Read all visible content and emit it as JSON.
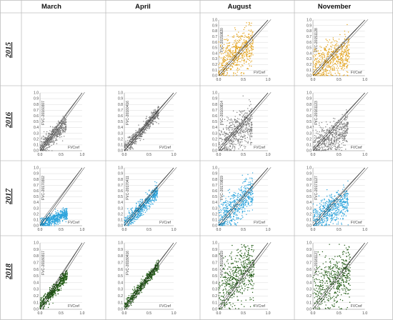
{
  "columns": [
    "March",
    "April",
    "August",
    "November"
  ],
  "rows": [
    "2015",
    "2016",
    "2017",
    "2018"
  ],
  "colors": {
    "2015": "#e3a21a",
    "2016": "#7f7f7f",
    "2017": "#2aa3dc",
    "2018": "#1f5a12"
  },
  "chart_data": [
    {
      "type": "scatter",
      "row": "2016",
      "column": "March",
      "ylabel": "FVC-20160307",
      "xlabel": "FVCref",
      "xlim": [
        0,
        1.0
      ],
      "ylim": [
        0,
        1.0
      ],
      "yticks": [
        0,
        0.1,
        0.2,
        0.3,
        0.4,
        0.5,
        0.6,
        0.7,
        0.8,
        0.9,
        1.0
      ],
      "xticks": [
        0,
        0.5,
        1.0
      ],
      "cloud": {
        "xmax": 0.62,
        "slope": 0.72,
        "intercept": 0.03,
        "spread": 0.07
      }
    },
    {
      "type": "scatter",
      "row": "2016",
      "column": "April",
      "ylabel": "FVC-20160416",
      "xlabel": "FVCref",
      "xlim": [
        0,
        1.0
      ],
      "ylim": [
        0,
        1.0
      ],
      "yticks": [
        0,
        0.1,
        0.2,
        0.3,
        0.4,
        0.5,
        0.6,
        0.7,
        0.8,
        0.9,
        1.0
      ],
      "xticks": [
        0,
        0.5,
        1.0
      ],
      "cloud": {
        "xmax": 0.7,
        "slope": 0.95,
        "intercept": 0.02,
        "spread": 0.06
      }
    },
    {
      "type": "scatter",
      "row": "2016",
      "column": "August",
      "ylabel": "FVC-20160814",
      "xlabel": "FVCref",
      "xlim": [
        0,
        1.0
      ],
      "ylim": [
        0,
        1.0
      ],
      "yticks": [
        0,
        0.1,
        0.2,
        0.3,
        0.4,
        0.5,
        0.6,
        0.7,
        0.8,
        0.9,
        1.0
      ],
      "xticks": [
        0,
        0.5,
        1.0
      ],
      "cloud": {
        "xmax": 0.68,
        "slope": 0.55,
        "intercept": 0.12,
        "spread": 0.16
      }
    },
    {
      "type": "scatter",
      "row": "2016",
      "column": "November",
      "ylabel": "FVC-20161123",
      "xlabel": "FVCref",
      "xlim": [
        0,
        1.0
      ],
      "ylim": [
        0,
        1.0
      ],
      "yticks": [
        0,
        0.1,
        0.2,
        0.3,
        0.4,
        0.5,
        0.6,
        0.7,
        0.8,
        0.9,
        1.0
      ],
      "xticks": [
        0,
        0.5,
        1.0
      ],
      "cloud": {
        "xmax": 0.68,
        "slope": 0.35,
        "intercept": 0.12,
        "spread": 0.14
      }
    },
    {
      "type": "scatter",
      "row": "2015",
      "column": "August",
      "ylabel": "FVC-20150820",
      "xlabel": "FVCref",
      "xlim": [
        0,
        1.0
      ],
      "ylim": [
        0,
        1.0
      ],
      "yticks": [
        0,
        0.1,
        0.2,
        0.3,
        0.4,
        0.5,
        0.6,
        0.7,
        0.8,
        0.9,
        1.0
      ],
      "xticks": [
        0,
        0.5,
        1.0
      ],
      "cloud": {
        "xmax": 0.7,
        "slope": 0.6,
        "intercept": 0.18,
        "spread": 0.18
      }
    },
    {
      "type": "scatter",
      "row": "2015",
      "column": "November",
      "ylabel": "FVC-20151128",
      "xlabel": "FVCref",
      "xlim": [
        0,
        1.0
      ],
      "ylim": [
        0,
        1.0
      ],
      "yticks": [
        0,
        0.1,
        0.2,
        0.3,
        0.4,
        0.5,
        0.6,
        0.7,
        0.8,
        0.9,
        1.0
      ],
      "xticks": [
        0,
        0.5,
        1.0
      ],
      "cloud": {
        "xmax": 0.7,
        "slope": 0.3,
        "intercept": 0.18,
        "spread": 0.17
      }
    },
    {
      "type": "scatter",
      "row": "2017",
      "column": "March",
      "ylabel": "FVC-20170302",
      "xlabel": "FVCref",
      "xlim": [
        0,
        1.0
      ],
      "ylim": [
        0,
        1.0
      ],
      "yticks": [
        0,
        0.1,
        0.2,
        0.3,
        0.4,
        0.5,
        0.6,
        0.7,
        0.8,
        0.9,
        1.0
      ],
      "xticks": [
        0,
        0.5,
        1.0
      ],
      "cloud": {
        "xmax": 0.65,
        "slope": 0.3,
        "intercept": 0.02,
        "spread": 0.05
      }
    },
    {
      "type": "scatter",
      "row": "2017",
      "column": "April",
      "ylabel": "FVC-20170411",
      "xlabel": "FVCref",
      "xlim": [
        0,
        1.0
      ],
      "ylim": [
        0,
        1.0
      ],
      "yticks": [
        0,
        0.1,
        0.2,
        0.3,
        0.4,
        0.5,
        0.6,
        0.7,
        0.8,
        0.9,
        1.0
      ],
      "xticks": [
        0,
        0.5,
        1.0
      ],
      "cloud": {
        "xmax": 0.68,
        "slope": 0.85,
        "intercept": 0.02,
        "spread": 0.07
      }
    },
    {
      "type": "scatter",
      "row": "2017",
      "column": "August",
      "ylabel": "FVC-20170819",
      "xlabel": "FVCref",
      "xlim": [
        0,
        1.0
      ],
      "ylim": [
        0,
        1.0
      ],
      "yticks": [
        0,
        0.1,
        0.2,
        0.3,
        0.4,
        0.5,
        0.6,
        0.7,
        0.8,
        0.9,
        1.0
      ],
      "xticks": [
        0,
        0.5,
        1.0
      ],
      "cloud": {
        "xmax": 0.7,
        "slope": 0.75,
        "intercept": 0.08,
        "spread": 0.15
      }
    },
    {
      "type": "scatter",
      "row": "2017",
      "column": "November",
      "ylabel": "FVC-20171127",
      "xlabel": "FVCref",
      "xlim": [
        0,
        1.0
      ],
      "ylim": [
        0,
        1.0
      ],
      "yticks": [
        0,
        0.1,
        0.2,
        0.3,
        0.4,
        0.5,
        0.6,
        0.7,
        0.8,
        0.9,
        1.0
      ],
      "xticks": [
        0,
        0.5,
        1.0
      ],
      "cloud": {
        "xmax": 0.68,
        "slope": 0.45,
        "intercept": 0.12,
        "spread": 0.13
      }
    },
    {
      "type": "scatter",
      "row": "2018",
      "column": "March",
      "ylabel": "FVC-20180317",
      "xlabel": "FVCref",
      "xlim": [
        0,
        1.0
      ],
      "ylim": [
        0,
        1.0
      ],
      "yticks": [
        0,
        0.1,
        0.2,
        0.3,
        0.4,
        0.5,
        0.6,
        0.7,
        0.8,
        0.9,
        1.0
      ],
      "xticks": [
        0,
        0.5,
        1.0
      ],
      "cloud": {
        "xmax": 0.65,
        "slope": 0.72,
        "intercept": 0.05,
        "spread": 0.05
      }
    },
    {
      "type": "scatter",
      "row": "2018",
      "column": "April",
      "ylabel": "FVC-20180416",
      "xlabel": "FVCref",
      "xlim": [
        0,
        1.0
      ],
      "ylim": [
        0,
        1.0
      ],
      "yticks": [
        0,
        0.1,
        0.2,
        0.3,
        0.4,
        0.5,
        0.6,
        0.7,
        0.8,
        0.9,
        1.0
      ],
      "xticks": [
        0,
        0.5,
        1.0
      ],
      "cloud": {
        "xmax": 0.7,
        "slope": 0.9,
        "intercept": 0.04,
        "spread": 0.04
      }
    },
    {
      "type": "scatter",
      "row": "2018",
      "column": "August",
      "ylabel": "FVC-20180819",
      "xlabel": "FVCref",
      "xlim": [
        0,
        1.0
      ],
      "ylim": [
        0,
        1.0
      ],
      "yticks": [
        0,
        0.1,
        0.2,
        0.3,
        0.4,
        0.5,
        0.6,
        0.7,
        0.8,
        0.9,
        1.0
      ],
      "xticks": [
        0,
        0.5,
        1.0
      ],
      "cloud": {
        "xmax": 0.72,
        "slope": 0.55,
        "intercept": 0.28,
        "spread": 0.2
      }
    },
    {
      "type": "scatter",
      "row": "2018",
      "column": "November",
      "ylabel": "FVC-20181127",
      "xlabel": "FVCref",
      "xlim": [
        0,
        1.0
      ],
      "ylim": [
        0,
        1.0
      ],
      "yticks": [
        0,
        0.1,
        0.2,
        0.3,
        0.4,
        0.5,
        0.6,
        0.7,
        0.8,
        0.9,
        1.0
      ],
      "xticks": [
        0,
        0.5,
        1.0
      ],
      "cloud": {
        "xmax": 0.72,
        "slope": 0.45,
        "intercept": 0.25,
        "spread": 0.2
      }
    }
  ]
}
